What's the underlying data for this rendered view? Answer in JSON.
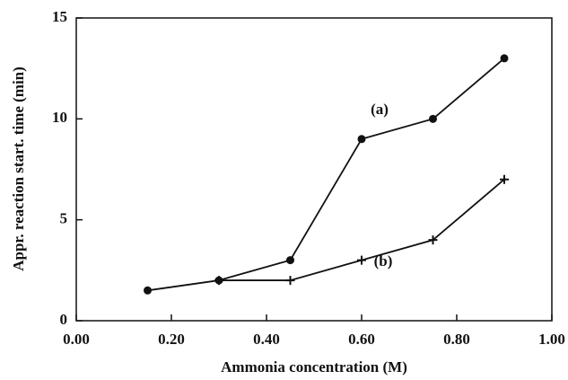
{
  "chart_data": {
    "type": "line",
    "xlabel": "Ammonia concentration (M)",
    "ylabel": "Appr. reaction start. time (min)",
    "xlim": [
      0,
      1
    ],
    "ylim": [
      0,
      15
    ],
    "xticks": [
      {
        "value": 0,
        "label": "0.00"
      },
      {
        "value": 0.2,
        "label": "0.20"
      },
      {
        "value": 0.4,
        "label": "0.40"
      },
      {
        "value": 0.6,
        "label": "0.60"
      },
      {
        "value": 0.8,
        "label": "0.80"
      },
      {
        "value": 1,
        "label": "1.00"
      }
    ],
    "yticks": [
      0,
      5,
      10,
      15
    ],
    "series": [
      {
        "name": "(a)",
        "color": "#111111",
        "marker": "circle",
        "x": [
          0.15,
          0.3,
          0.45,
          0.6,
          0.75,
          0.9
        ],
        "values": [
          1.5,
          2,
          3,
          9,
          10,
          13
        ]
      },
      {
        "name": "(b)",
        "color": "#111111",
        "marker": "plus",
        "x": [
          0.3,
          0.45,
          0.6,
          0.75,
          0.9
        ],
        "values": [
          2,
          2,
          3,
          4,
          7
        ]
      }
    ]
  }
}
